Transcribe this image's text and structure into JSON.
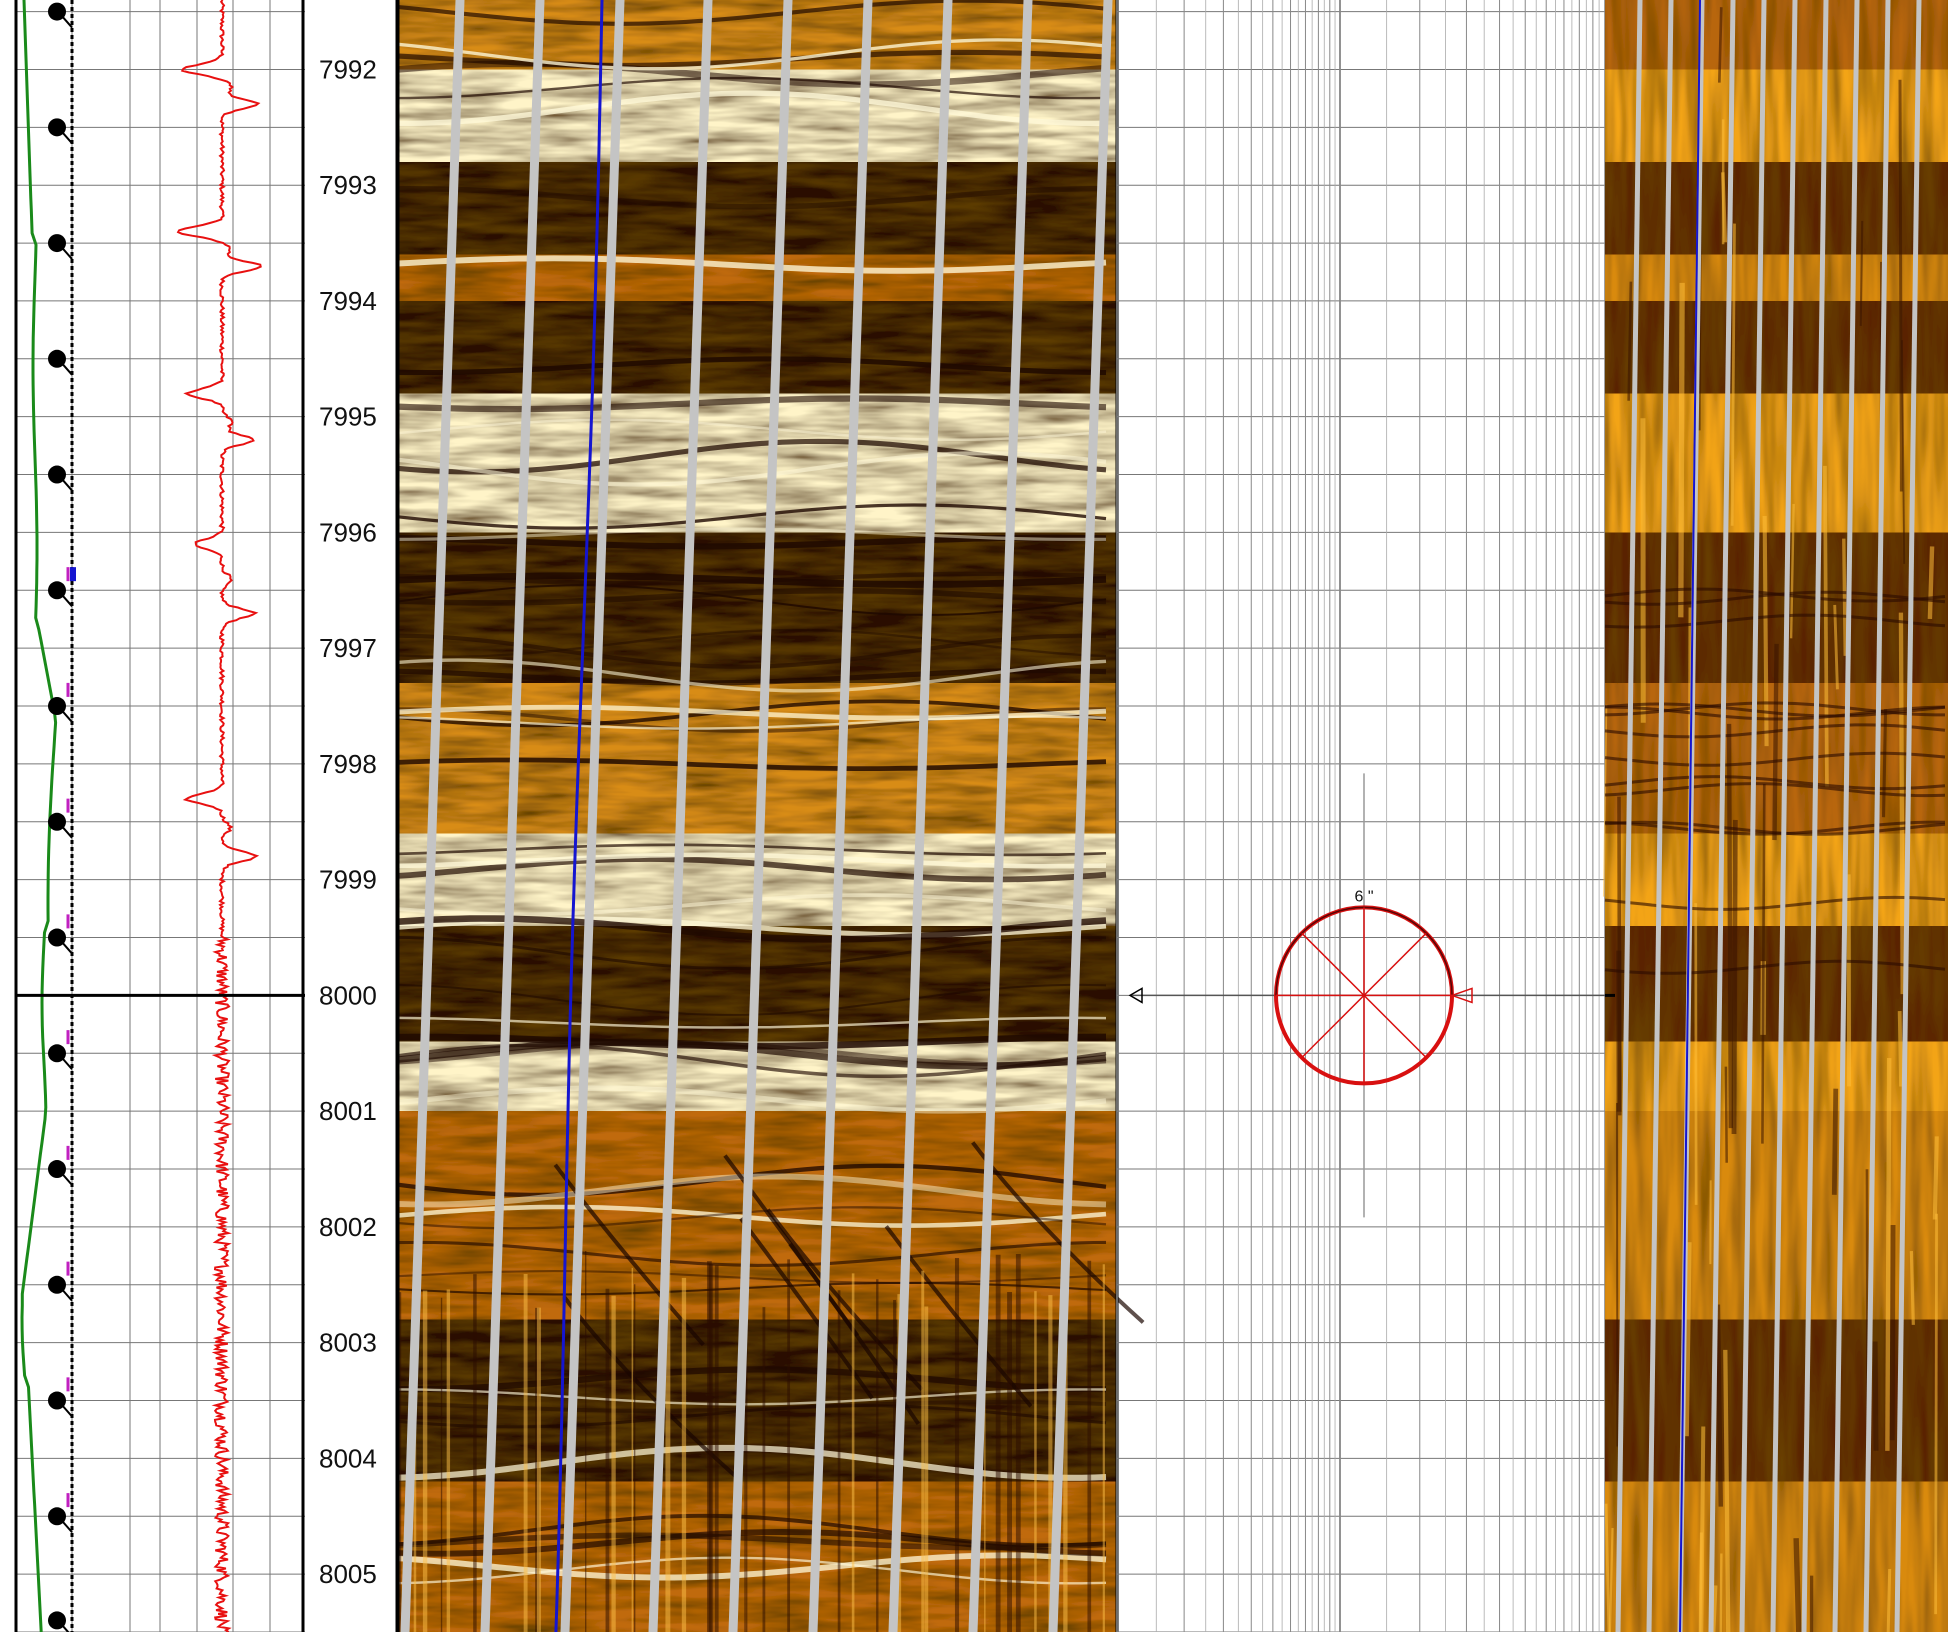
{
  "chart_data": {
    "type": "well-log",
    "depth": {
      "start": 7991.4,
      "end": 8005.5,
      "ticks": [
        "7992",
        "7993",
        "7994",
        "7995",
        "7996",
        "7997",
        "7998",
        "7999",
        "8000",
        "8001",
        "8002",
        "8003",
        "8004",
        "8005"
      ],
      "cursor_depth": 8000
    },
    "colors": {
      "gamma": "#e81010",
      "caliper": "#1a8a1a",
      "borehole_path": "#1515d0",
      "sinusoid": "#c4c4c4",
      "cursor": "#000000",
      "hole_size": "#d81010",
      "image_dark": "#2a0e02",
      "image_mid": "#c06a08",
      "image_light": "#fff4c8"
    },
    "markers": {
      "icon": "dip-tadpole-icon",
      "depths": [
        7991.5,
        7992.5,
        7993.5,
        7994.5,
        7995.5,
        7996.5,
        7997.5,
        7998.5,
        7999.5,
        8000.5,
        8001.5,
        8002.5,
        8003.5,
        8004.5,
        8005.4
      ]
    },
    "hole_size": {
      "label": "6 \"",
      "depth": 8000,
      "icon": "borehole-cross-section-icon"
    },
    "image_bands": [
      {
        "from": 7991.4,
        "to": 7992.0,
        "tone": "mixed"
      },
      {
        "from": 7992.0,
        "to": 7992.8,
        "tone": "light"
      },
      {
        "from": 7992.8,
        "to": 7993.6,
        "tone": "dark"
      },
      {
        "from": 7993.6,
        "to": 7994.0,
        "tone": "mid"
      },
      {
        "from": 7994.0,
        "to": 7994.8,
        "tone": "dark"
      },
      {
        "from": 7994.8,
        "to": 7996.0,
        "tone": "light"
      },
      {
        "from": 7996.0,
        "to": 7997.3,
        "tone": "dark"
      },
      {
        "from": 7997.3,
        "to": 7998.6,
        "tone": "mixed"
      },
      {
        "from": 7998.6,
        "to": 7999.4,
        "tone": "light"
      },
      {
        "from": 7999.4,
        "to": 8000.4,
        "tone": "dark"
      },
      {
        "from": 8000.4,
        "to": 8001.0,
        "tone": "light"
      },
      {
        "from": 8001.0,
        "to": 8002.8,
        "tone": "mid"
      },
      {
        "from": 8002.8,
        "to": 8004.2,
        "tone": "dark"
      },
      {
        "from": 8004.2,
        "to": 8005.5,
        "tone": "mid"
      }
    ]
  }
}
